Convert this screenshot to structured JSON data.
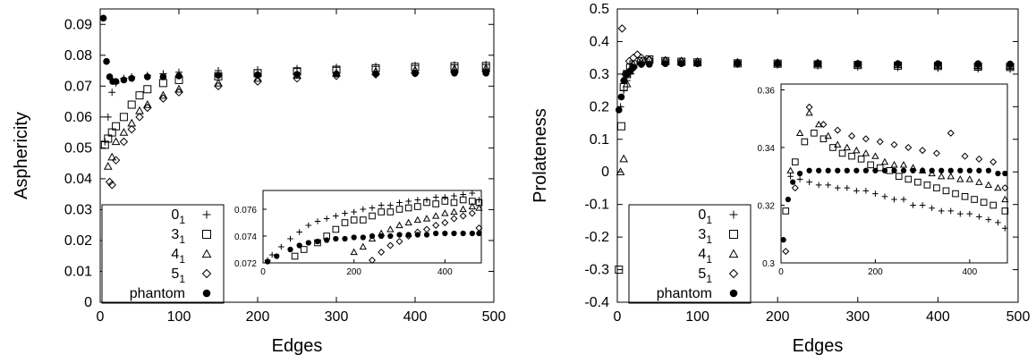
{
  "chart_data": [
    {
      "type": "scatter",
      "xlabel": "Edges",
      "ylabel": "Asphericity",
      "xlim": [
        0,
        500
      ],
      "ylim": [
        0,
        0.095
      ],
      "xticks": [
        "0",
        "100",
        "200",
        "300",
        "400",
        "500"
      ],
      "yticks": [
        "0",
        "0.01",
        "0.02",
        "0.03",
        "0.04",
        "0.05",
        "0.06",
        "0.07",
        "0.08",
        "0.09"
      ],
      "legend_position": "bottom-left",
      "series": [
        {
          "name": "0",
          "subscript": "1",
          "marker": "plus",
          "x": [
            6,
            10,
            15,
            20,
            30,
            40,
            60,
            80,
            100,
            150,
            200,
            250,
            300,
            350,
            400,
            450,
            490
          ],
          "y": [
            0.052,
            0.06,
            0.068,
            0.071,
            0.0725,
            0.073,
            0.0735,
            0.074,
            0.0745,
            0.075,
            0.0753,
            0.0757,
            0.0761,
            0.0764,
            0.0767,
            0.0769,
            0.077
          ]
        },
        {
          "name": "3",
          "subscript": "1",
          "marker": "square",
          "x": [
            6,
            10,
            15,
            20,
            30,
            40,
            50,
            60,
            80,
            100,
            150,
            200,
            250,
            300,
            350,
            400,
            450,
            490
          ],
          "y": [
            0.051,
            0.053,
            0.055,
            0.057,
            0.06,
            0.064,
            0.067,
            0.069,
            0.071,
            0.072,
            0.0732,
            0.0742,
            0.0748,
            0.0753,
            0.0758,
            0.0762,
            0.0764,
            0.0765
          ]
        },
        {
          "name": "4",
          "subscript": "1",
          "marker": "triangle",
          "x": [
            10,
            15,
            20,
            30,
            40,
            50,
            60,
            80,
            100,
            150,
            200,
            250,
            300,
            350,
            400,
            450,
            490
          ],
          "y": [
            0.044,
            0.047,
            0.052,
            0.055,
            0.058,
            0.062,
            0.064,
            0.067,
            0.069,
            0.071,
            0.0725,
            0.0735,
            0.0742,
            0.0748,
            0.0752,
            0.0756,
            0.0758
          ]
        },
        {
          "name": "5",
          "subscript": "1",
          "marker": "diamond",
          "x": [
            12,
            15,
            20,
            30,
            40,
            50,
            60,
            80,
            100,
            150,
            200,
            250,
            300,
            350,
            400,
            450,
            490
          ],
          "y": [
            0.039,
            0.038,
            0.046,
            0.052,
            0.056,
            0.06,
            0.063,
            0.066,
            0.068,
            0.07,
            0.0715,
            0.0725,
            0.0733,
            0.0738,
            0.0742,
            0.0745,
            0.0747
          ]
        },
        {
          "name": "phantom",
          "subscript": "",
          "marker": "circle",
          "x": [
            4,
            8,
            12,
            16,
            20,
            30,
            40,
            60,
            80,
            100,
            150,
            200,
            250,
            300,
            350,
            400,
            450,
            490
          ],
          "y": [
            0.092,
            0.078,
            0.073,
            0.0715,
            0.0715,
            0.072,
            0.0725,
            0.073,
            0.073,
            0.0733,
            0.0735,
            0.0737,
            0.0738,
            0.0739,
            0.074,
            0.0741,
            0.0742,
            0.0742
          ]
        }
      ],
      "inset": {
        "xlim": [
          0,
          480
        ],
        "ylim": [
          0.072,
          0.0774
        ],
        "xticks": [
          "0",
          "200",
          "400"
        ],
        "yticks": [
          "0.072",
          "0.074",
          "0.076"
        ],
        "series": [
          {
            "marker": "plus",
            "x": [
              10,
              20,
              40,
              60,
              80,
              100,
              120,
              140,
              160,
              180,
              200,
              220,
              240,
              260,
              280,
              300,
              320,
              340,
              360,
              380,
              400,
              420,
              440,
              460,
              475
            ],
            "y": [
              0.0722,
              0.0726,
              0.0732,
              0.0738,
              0.0743,
              0.0748,
              0.0751,
              0.0753,
              0.0755,
              0.0757,
              0.0758,
              0.076,
              0.0761,
              0.0763,
              0.0763,
              0.0765,
              0.0766,
              0.0767,
              0.0767,
              0.0769,
              0.0769,
              0.077,
              0.0771,
              0.0772,
              0.0767
            ]
          },
          {
            "marker": "square",
            "x": [
              70,
              90,
              120,
              140,
              160,
              180,
              200,
              220,
              240,
              260,
              280,
              300,
              320,
              340,
              360,
              380,
              400,
              420,
              440,
              460,
              475
            ],
            "y": [
              0.0725,
              0.073,
              0.0735,
              0.074,
              0.0745,
              0.075,
              0.0752,
              0.0752,
              0.0755,
              0.0758,
              0.0758,
              0.076,
              0.0761,
              0.0762,
              0.0765,
              0.0764,
              0.0766,
              0.0765,
              0.0767,
              0.0766,
              0.0765
            ]
          },
          {
            "marker": "triangle",
            "x": [
              200,
              220,
              240,
              260,
              280,
              300,
              320,
              340,
              360,
              380,
              400,
              420,
              440,
              460,
              475
            ],
            "y": [
              0.0728,
              0.0732,
              0.0738,
              0.0742,
              0.0745,
              0.0748,
              0.075,
              0.0752,
              0.0753,
              0.0755,
              0.0757,
              0.0758,
              0.076,
              0.0762,
              0.0761
            ]
          },
          {
            "marker": "diamond",
            "x": [
              240,
              260,
              280,
              300,
              320,
              340,
              360,
              380,
              400,
              420,
              440,
              460,
              475
            ],
            "y": [
              0.0722,
              0.0728,
              0.0733,
              0.0736,
              0.074,
              0.0743,
              0.0745,
              0.0748,
              0.075,
              0.0753,
              0.0755,
              0.0757,
              0.0746
            ]
          },
          {
            "marker": "circle",
            "x": [
              10,
              30,
              60,
              80,
              100,
              120,
              140,
              160,
              180,
              200,
              220,
              240,
              260,
              280,
              300,
              320,
              340,
              360,
              380,
              400,
              420,
              440,
              460,
              475
            ],
            "y": [
              0.0721,
              0.0725,
              0.073,
              0.0733,
              0.0735,
              0.0736,
              0.0737,
              0.0738,
              0.0738,
              0.0739,
              0.0739,
              0.074,
              0.074,
              0.074,
              0.0741,
              0.0741,
              0.0741,
              0.0741,
              0.0742,
              0.0742,
              0.0742,
              0.0742,
              0.0742,
              0.0742
            ]
          }
        ]
      }
    },
    {
      "type": "scatter",
      "xlabel": "Edges",
      "ylabel": "Prolateness",
      "xlim": [
        0,
        500
      ],
      "ylim": [
        -0.4,
        0.5
      ],
      "xticks": [
        "0",
        "100",
        "200",
        "300",
        "400",
        "500"
      ],
      "yticks": [
        "-0.4",
        "-0.3",
        "-0.2",
        "-0.1",
        "0",
        "0.1",
        "0.2",
        "0.3",
        "0.4",
        "0.5"
      ],
      "legend_position": "bottom-left",
      "series": [
        {
          "name": "0",
          "subscript": "1",
          "marker": "plus",
          "x": [
            4,
            8,
            12,
            16,
            20,
            30,
            40,
            60,
            80,
            100,
            150,
            200,
            250,
            300,
            350,
            400,
            450,
            490
          ],
          "y": [
            0.2,
            0.25,
            0.28,
            0.3,
            0.32,
            0.33,
            0.335,
            0.335,
            0.333,
            0.332,
            0.33,
            0.328,
            0.325,
            0.322,
            0.32,
            0.318,
            0.316,
            0.315
          ]
        },
        {
          "name": "3",
          "subscript": "1",
          "marker": "square",
          "x": [
            2,
            5,
            8,
            12,
            16,
            20,
            30,
            40,
            60,
            80,
            100,
            150,
            200,
            250,
            300,
            350,
            400,
            450,
            490
          ],
          "y": [
            -0.3,
            0.14,
            0.26,
            0.3,
            0.32,
            0.33,
            0.34,
            0.345,
            0.34,
            0.338,
            0.336,
            0.333,
            0.332,
            0.33,
            0.328,
            0.326,
            0.325,
            0.323,
            0.322
          ]
        },
        {
          "name": "4",
          "subscript": "1",
          "marker": "triangle",
          "x": [
            4,
            8,
            12,
            16,
            20,
            30,
            40,
            60,
            80,
            100,
            150,
            200,
            250,
            300,
            350,
            400,
            450,
            490
          ],
          "y": [
            0.0,
            0.04,
            0.27,
            0.31,
            0.33,
            0.34,
            0.345,
            0.342,
            0.34,
            0.338,
            0.336,
            0.334,
            0.332,
            0.33,
            0.329,
            0.328,
            0.327,
            0.326
          ]
        },
        {
          "name": "5",
          "subscript": "1",
          "marker": "diamond",
          "x": [
            6,
            10,
            15,
            20,
            25,
            30,
            40,
            60,
            80,
            100,
            150,
            200,
            250,
            300,
            350,
            400,
            450,
            490
          ],
          "y": [
            0.44,
            0.3,
            0.34,
            0.35,
            0.36,
            0.35,
            0.345,
            0.342,
            0.34,
            0.338,
            0.336,
            0.335,
            0.334,
            0.332,
            0.331,
            0.33,
            0.329,
            0.328
          ]
        },
        {
          "name": "phantom",
          "subscript": "",
          "marker": "circle",
          "x": [
            2,
            5,
            8,
            12,
            16,
            20,
            30,
            40,
            60,
            80,
            100,
            150,
            200,
            250,
            300,
            350,
            400,
            450,
            490
          ],
          "y": [
            0.19,
            0.23,
            0.28,
            0.3,
            0.31,
            0.32,
            0.33,
            0.33,
            0.332,
            0.332,
            0.332,
            0.332,
            0.332,
            0.332,
            0.332,
            0.332,
            0.332,
            0.332,
            0.331
          ]
        }
      ],
      "inset": {
        "xlim": [
          0,
          480
        ],
        "ylim": [
          0.3,
          0.362
        ],
        "xticks": [
          "0",
          "200",
          "400"
        ],
        "yticks": [
          "0.3",
          "0.32",
          "0.34",
          "0.36"
        ],
        "series": [
          {
            "marker": "plus",
            "x": [
              20,
              40,
              60,
              80,
              100,
              120,
              140,
              160,
              180,
              200,
              220,
              240,
              260,
              280,
              300,
              320,
              340,
              360,
              380,
              400,
              420,
              440,
              460,
              475
            ],
            "y": [
              0.33,
              0.329,
              0.328,
              0.327,
              0.327,
              0.326,
              0.326,
              0.325,
              0.325,
              0.324,
              0.323,
              0.322,
              0.322,
              0.32,
              0.32,
              0.319,
              0.318,
              0.318,
              0.317,
              0.317,
              0.316,
              0.315,
              0.314,
              0.312
            ]
          },
          {
            "marker": "square",
            "x": [
              10,
              30,
              50,
              70,
              90,
              110,
              130,
              150,
              170,
              190,
              210,
              230,
              250,
              270,
              290,
              310,
              330,
              350,
              370,
              390,
              410,
              430,
              450,
              475
            ],
            "y": [
              0.318,
              0.335,
              0.342,
              0.345,
              0.343,
              0.34,
              0.338,
              0.337,
              0.336,
              0.334,
              0.333,
              0.332,
              0.33,
              0.329,
              0.328,
              0.327,
              0.326,
              0.325,
              0.324,
              0.323,
              0.322,
              0.321,
              0.32,
              0.318
            ]
          },
          {
            "marker": "triangle",
            "x": [
              20,
              40,
              60,
              80,
              100,
              120,
              140,
              160,
              180,
              200,
              220,
              240,
              260,
              280,
              300,
              320,
              340,
              360,
              380,
              400,
              420,
              440,
              460,
              475
            ],
            "y": [
              0.332,
              0.345,
              0.352,
              0.348,
              0.344,
              0.341,
              0.34,
              0.339,
              0.338,
              0.337,
              0.335,
              0.334,
              0.334,
              0.333,
              0.332,
              0.331,
              0.33,
              0.33,
              0.329,
              0.329,
              0.328,
              0.327,
              0.326,
              0.322
            ]
          },
          {
            "marker": "diamond",
            "x": [
              10,
              30,
              60,
              90,
              120,
              150,
              180,
              210,
              240,
              270,
              300,
              330,
              360,
              390,
              420,
              450,
              475
            ],
            "y": [
              0.304,
              0.326,
              0.354,
              0.348,
              0.346,
              0.344,
              0.343,
              0.342,
              0.341,
              0.34,
              0.339,
              0.338,
              0.345,
              0.337,
              0.336,
              0.335,
              0.326
            ]
          },
          {
            "marker": "circle",
            "x": [
              5,
              15,
              25,
              40,
              60,
              80,
              100,
              120,
              140,
              160,
              180,
              200,
              220,
              240,
              260,
              280,
              300,
              320,
              340,
              360,
              380,
              400,
              420,
              440,
              460,
              475
            ],
            "y": [
              0.308,
              0.322,
              0.328,
              0.331,
              0.332,
              0.332,
              0.332,
              0.332,
              0.332,
              0.332,
              0.332,
              0.332,
              0.332,
              0.332,
              0.332,
              0.332,
              0.332,
              0.332,
              0.332,
              0.332,
              0.332,
              0.332,
              0.332,
              0.332,
              0.331,
              0.331
            ]
          }
        ]
      }
    }
  ]
}
